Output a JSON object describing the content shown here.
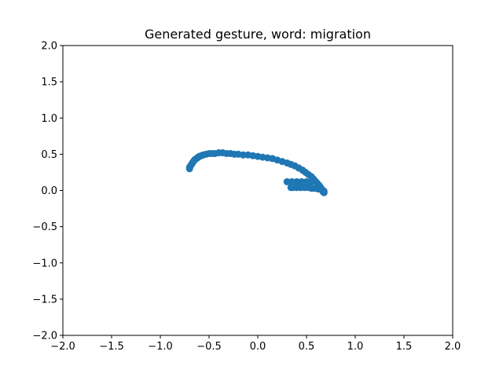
{
  "chart_data": {
    "type": "scatter",
    "title": "Generated gesture, word: migration",
    "xlabel": "",
    "ylabel": "",
    "xlim": [
      -2.0,
      2.0
    ],
    "ylim": [
      -2.0,
      2.0
    ],
    "x_ticks": [
      "−2.0",
      "−1.5",
      "−1.0",
      "−0.5",
      "0.0",
      "0.5",
      "1.0",
      "1.5",
      "2.0"
    ],
    "y_ticks": [
      "−2.0",
      "−1.5",
      "−1.0",
      "−0.5",
      "0.0",
      "0.5",
      "1.0",
      "1.5",
      "2.0"
    ],
    "grid": false,
    "legend": "none",
    "color": "#1f77b4",
    "series": [
      {
        "x": [
          -0.7,
          -0.7,
          -0.69,
          -0.68,
          -0.67,
          -0.66,
          -0.65,
          -0.64,
          -0.63,
          -0.62,
          -0.61,
          -0.6,
          -0.58,
          -0.56,
          -0.53,
          -0.5,
          -0.47,
          -0.44,
          -0.4,
          -0.36,
          -0.32,
          -0.28,
          -0.24,
          -0.2,
          -0.15,
          -0.1,
          -0.05,
          0.0,
          0.05,
          0.1,
          0.15,
          0.2,
          0.25,
          0.3,
          0.34,
          0.38,
          0.42,
          0.46,
          0.49,
          0.52,
          0.55,
          0.57,
          0.59,
          0.61,
          0.63,
          0.64,
          0.65,
          0.66,
          0.67,
          0.67,
          0.68,
          0.68,
          0.67,
          0.66,
          0.64,
          0.62,
          0.6,
          0.58,
          0.55,
          0.52,
          0.48,
          0.44,
          0.4,
          0.36,
          0.34,
          0.55,
          0.5,
          0.45,
          0.4,
          0.35,
          0.3
        ],
        "y": [
          0.3,
          0.32,
          0.34,
          0.36,
          0.38,
          0.4,
          0.42,
          0.43,
          0.44,
          0.45,
          0.46,
          0.47,
          0.48,
          0.49,
          0.5,
          0.51,
          0.51,
          0.51,
          0.52,
          0.52,
          0.51,
          0.51,
          0.5,
          0.5,
          0.49,
          0.49,
          0.48,
          0.47,
          0.46,
          0.45,
          0.44,
          0.42,
          0.4,
          0.38,
          0.36,
          0.34,
          0.31,
          0.28,
          0.25,
          0.22,
          0.19,
          0.16,
          0.13,
          0.1,
          0.07,
          0.05,
          0.03,
          0.01,
          -0.01,
          -0.02,
          -0.03,
          -0.01,
          0.0,
          0.01,
          0.02,
          0.02,
          0.03,
          0.03,
          0.03,
          0.04,
          0.04,
          0.04,
          0.04,
          0.04,
          0.04,
          0.12,
          0.12,
          0.12,
          0.12,
          0.12,
          0.12
        ]
      }
    ]
  }
}
